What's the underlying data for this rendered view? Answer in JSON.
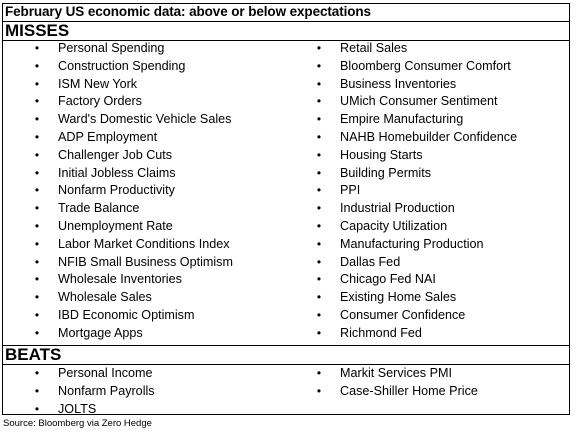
{
  "title": "February US economic data: above or below expectations",
  "misses": {
    "header": "MISSES",
    "left": [
      "Personal Spending",
      "Construction Spending",
      "ISM New York",
      "Factory Orders",
      "Ward's Domestic Vehicle Sales",
      "ADP Employment",
      "Challenger Job Cuts",
      "Initial Jobless Claims",
      "Nonfarm Productivity",
      "Trade Balance",
      "Unemployment Rate",
      "Labor Market Conditions Index",
      "NFIB Small Business Optimism",
      "Wholesale Inventories",
      "Wholesale Sales",
      "IBD Economic Optimism",
      "Mortgage Apps"
    ],
    "right": [
      "Retail Sales",
      "Bloomberg Consumer Comfort",
      "Business Inventories",
      "UMich Consumer Sentiment",
      "Empire Manufacturing",
      "NAHB Homebuilder Confidence",
      "Housing Starts",
      "Building Permits",
      "PPI",
      "Industrial Production",
      "Capacity Utilization",
      "Manufacturing Production",
      "Dallas Fed",
      "Chicago Fed NAI",
      "Existing Home Sales",
      "Consumer Confidence",
      "Richmond Fed"
    ]
  },
  "beats": {
    "header": "BEATS",
    "left": [
      "Personal Income",
      "Nonfarm Payrolls",
      "JOLTS"
    ],
    "right": [
      "Markit Services PMI",
      "Case-Shiller Home Price"
    ]
  },
  "bullet_symbol": "•",
  "source": "Source: Bloomberg via Zero Hedge"
}
